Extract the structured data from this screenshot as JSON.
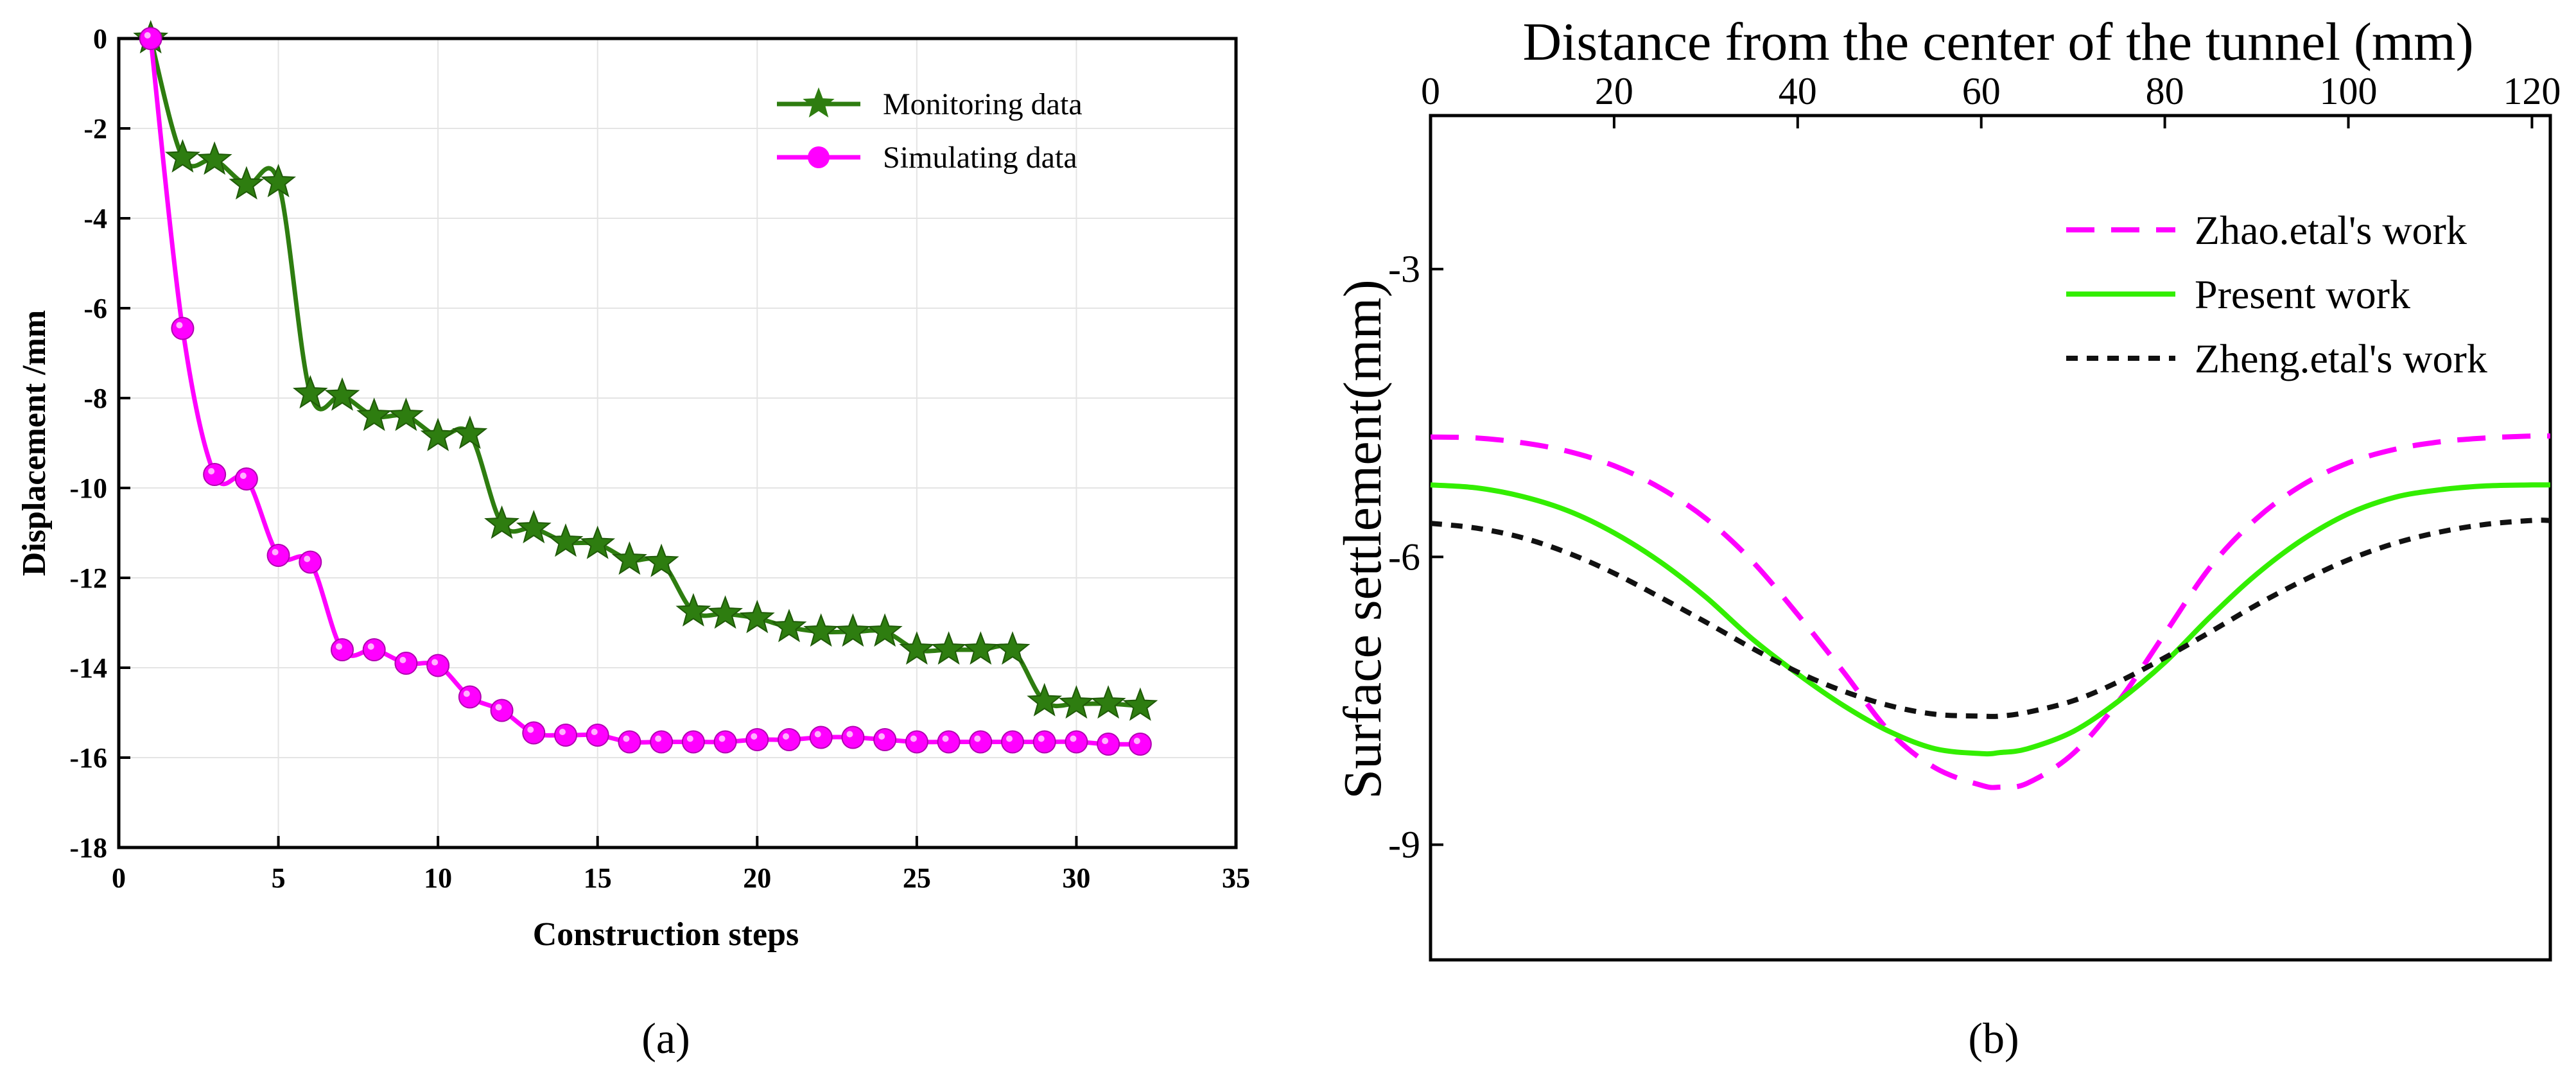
{
  "chart_data": [
    {
      "panel_label": "(a)",
      "type": "line",
      "title": "",
      "xlabel": "Construction steps",
      "ylabel": "Displacement /mm",
      "xlim": [
        0,
        35
      ],
      "ylim": [
        -18,
        0
      ],
      "xticks": [
        0,
        5,
        10,
        15,
        20,
        25,
        30,
        35
      ],
      "yticks": [
        0,
        -2,
        -4,
        -6,
        -8,
        -10,
        -12,
        -14,
        -16,
        -18
      ],
      "grid": true,
      "legend_position": "top-right",
      "series": [
        {
          "name": "Monitoring data",
          "color": "#2e7d10",
          "marker": "star",
          "x": [
            1,
            2,
            3,
            4,
            5,
            6,
            7,
            8,
            9,
            10,
            11,
            12,
            13,
            14,
            15,
            16,
            17,
            18,
            19,
            20,
            21,
            22,
            23,
            24,
            25,
            26,
            27,
            28,
            29,
            30,
            31,
            32
          ],
          "y": [
            0,
            -2.65,
            -2.7,
            -3.25,
            -3.2,
            -7.9,
            -7.95,
            -8.4,
            -8.4,
            -8.85,
            -8.8,
            -10.8,
            -10.9,
            -11.2,
            -11.25,
            -11.6,
            -11.65,
            -12.75,
            -12.8,
            -12.9,
            -13.1,
            -13.2,
            -13.2,
            -13.2,
            -13.6,
            -13.6,
            -13.6,
            -13.6,
            -14.75,
            -14.8,
            -14.8,
            -14.85
          ]
        },
        {
          "name": "Simulating data",
          "color": "#ff00ff",
          "marker": "circle",
          "x": [
            1,
            2,
            3,
            4,
            5,
            6,
            7,
            8,
            9,
            10,
            11,
            12,
            13,
            14,
            15,
            16,
            17,
            18,
            19,
            20,
            21,
            22,
            23,
            24,
            25,
            26,
            27,
            28,
            29,
            30,
            31,
            32
          ],
          "y": [
            0,
            -6.45,
            -9.7,
            -9.8,
            -11.5,
            -11.65,
            -13.6,
            -13.6,
            -13.9,
            -13.95,
            -14.65,
            -14.95,
            -15.45,
            -15.5,
            -15.5,
            -15.65,
            -15.65,
            -15.65,
            -15.65,
            -15.6,
            -15.6,
            -15.55,
            -15.55,
            -15.6,
            -15.65,
            -15.65,
            -15.65,
            -15.65,
            -15.65,
            -15.65,
            -15.7,
            -15.7
          ]
        }
      ]
    },
    {
      "panel_label": "(b)",
      "type": "line",
      "title": "",
      "xlabel": "Distance from the center of the tunnel (mm)",
      "ylabel": "Surface settlement(mm)",
      "x_axis_position": "top",
      "xlim": [
        0,
        122
      ],
      "ylim": [
        -10.2,
        -1.4
      ],
      "xticks": [
        0,
        20,
        40,
        60,
        80,
        100,
        120
      ],
      "yticks": [
        -3,
        -6,
        -9
      ],
      "grid": false,
      "legend_position": "top-right",
      "series": [
        {
          "name": "Zhao.etal's work",
          "color": "#ff00ff",
          "dash": "long-dash",
          "x": [
            0,
            5,
            10,
            15,
            20,
            25,
            30,
            35,
            40,
            45,
            50,
            55,
            60,
            62,
            65,
            70,
            75,
            80,
            85,
            90,
            95,
            100,
            105,
            110,
            115,
            120,
            122
          ],
          "y": [
            -4.75,
            -4.76,
            -4.81,
            -4.9,
            -5.05,
            -5.28,
            -5.6,
            -6.04,
            -6.6,
            -7.2,
            -7.82,
            -8.2,
            -8.38,
            -8.4,
            -8.36,
            -8.05,
            -7.5,
            -6.8,
            -6.1,
            -5.6,
            -5.25,
            -5.02,
            -4.88,
            -4.8,
            -4.76,
            -4.74,
            -4.74
          ]
        },
        {
          "name": "Present work",
          "color": "#33ee00",
          "dash": "solid",
          "x": [
            0,
            5,
            10,
            15,
            20,
            25,
            30,
            35,
            40,
            45,
            50,
            55,
            60,
            62,
            65,
            70,
            75,
            80,
            85,
            90,
            95,
            100,
            105,
            110,
            115,
            120,
            122
          ],
          "y": [
            -5.25,
            -5.28,
            -5.37,
            -5.52,
            -5.75,
            -6.05,
            -6.42,
            -6.85,
            -7.22,
            -7.55,
            -7.82,
            -8.0,
            -8.05,
            -8.04,
            -8.0,
            -7.82,
            -7.5,
            -7.1,
            -6.62,
            -6.18,
            -5.82,
            -5.55,
            -5.38,
            -5.3,
            -5.26,
            -5.25,
            -5.25
          ]
        },
        {
          "name": "Zheng.etal's work",
          "color": "#111111",
          "dash": "short-dash",
          "x": [
            0,
            5,
            10,
            15,
            20,
            25,
            30,
            35,
            40,
            45,
            50,
            55,
            60,
            62,
            65,
            70,
            75,
            80,
            85,
            90,
            95,
            100,
            105,
            110,
            115,
            120,
            122
          ],
          "y": [
            -5.65,
            -5.7,
            -5.8,
            -5.96,
            -6.17,
            -6.42,
            -6.68,
            -6.95,
            -7.2,
            -7.4,
            -7.55,
            -7.64,
            -7.66,
            -7.66,
            -7.62,
            -7.5,
            -7.3,
            -7.05,
            -6.78,
            -6.5,
            -6.25,
            -6.03,
            -5.86,
            -5.74,
            -5.66,
            -5.62,
            -5.62
          ]
        }
      ]
    }
  ]
}
